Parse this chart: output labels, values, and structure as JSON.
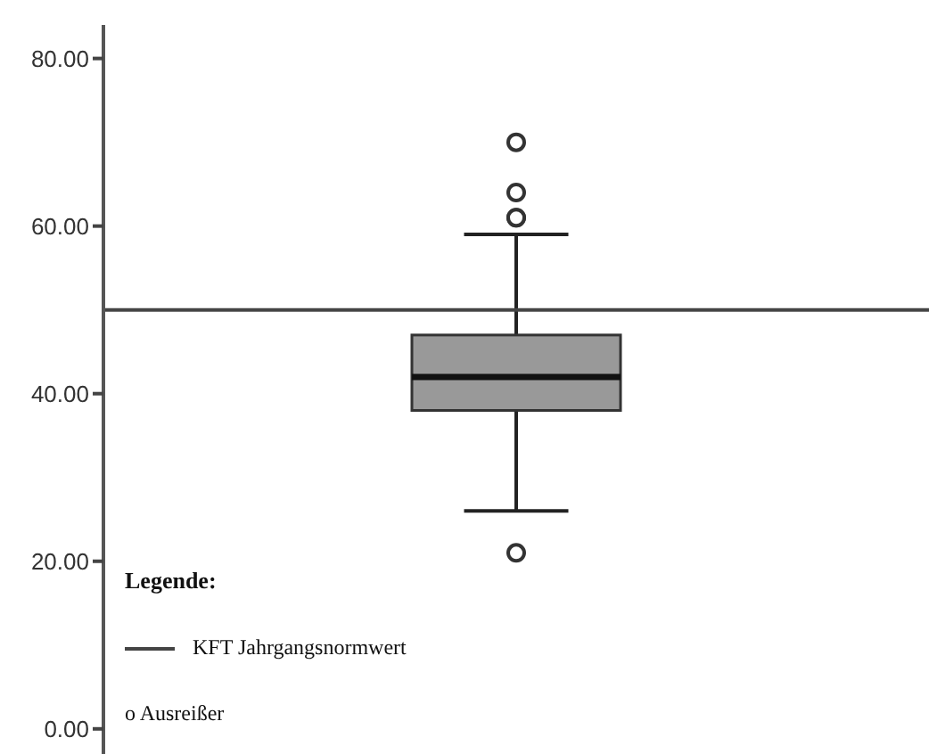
{
  "chart_data": {
    "type": "box",
    "categories": [
      null
    ],
    "color": "#999999",
    "boxes": [
      {
        "low": 26,
        "q1": 38,
        "median": 42,
        "q3": 47,
        "high": 59,
        "outliers": [
          70,
          64,
          61,
          61,
          21
        ]
      }
    ],
    "ylim": [
      -3,
      84
    ],
    "yticks": [
      {
        "value": 0,
        "label": "0.00"
      },
      {
        "value": 20,
        "label": "20.00"
      },
      {
        "value": 40,
        "label": "40.00"
      },
      {
        "value": 60,
        "label": "60.00"
      },
      {
        "value": 80,
        "label": "80.00"
      }
    ],
    "ref_lines": [
      {
        "axis": "y",
        "value": 50,
        "label": "KFT Jahrgangsnormwert",
        "color": "#444444"
      }
    ],
    "annotations": [
      "Legende:",
      "o Ausreißer"
    ],
    "legend": "bottom left",
    "tick_labels": "y",
    "grid": false
  }
}
